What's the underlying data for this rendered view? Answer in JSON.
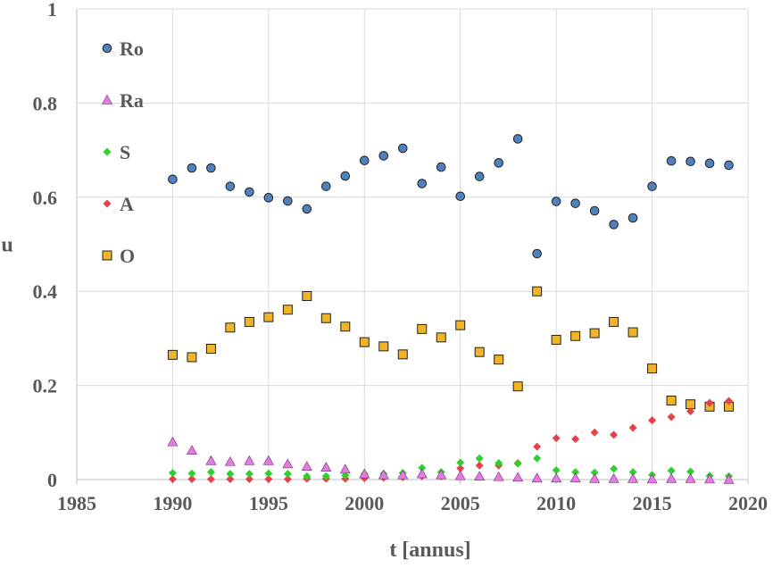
{
  "chart_data": {
    "type": "scatter",
    "title": "",
    "xlabel": "t [annus]",
    "ylabel": "u",
    "xlim": [
      1985,
      2020
    ],
    "ylim": [
      0,
      1
    ],
    "xticks": [
      1985,
      1990,
      1995,
      2000,
      2005,
      2010,
      2015,
      2020
    ],
    "yticks": [
      0,
      0.2,
      0.4,
      0.6,
      0.8,
      1
    ],
    "ytick_labels": [
      "0",
      "0.2",
      "0.4",
      "0.6",
      "0.8",
      "1"
    ],
    "grid": true,
    "legend": "top-left",
    "x": [
      1990,
      1991,
      1992,
      1993,
      1994,
      1995,
      1996,
      1997,
      1998,
      1999,
      2000,
      2001,
      2002,
      2003,
      2004,
      2005,
      2006,
      2007,
      2008,
      2009,
      2010,
      2011,
      2012,
      2013,
      2014,
      2015,
      2016,
      2017,
      2018,
      2019
    ],
    "series": [
      {
        "name": "Ro",
        "marker": "circle",
        "color": "#4f81bd",
        "values": [
          0.638,
          0.662,
          0.662,
          0.623,
          0.611,
          0.599,
          0.592,
          0.575,
          0.623,
          0.645,
          0.678,
          0.688,
          0.704,
          0.629,
          0.664,
          0.602,
          0.644,
          0.673,
          0.724,
          0.48,
          0.591,
          0.587,
          0.571,
          0.542,
          0.556,
          0.623,
          0.677,
          0.676,
          0.672,
          0.668
        ]
      },
      {
        "name": "Ra",
        "marker": "triangle",
        "color": "#e07ee0",
        "values": [
          0.08,
          0.062,
          0.04,
          0.038,
          0.04,
          0.04,
          0.033,
          0.028,
          0.026,
          0.022,
          0.012,
          0.01,
          0.01,
          0.012,
          0.01,
          0.008,
          0.007,
          0.006,
          0.005,
          0.003,
          0.003,
          0.003,
          0.002,
          0.002,
          0.002,
          0.001,
          0.002,
          0.002,
          0.001,
          0.0
        ]
      },
      {
        "name": "S",
        "marker": "diamond",
        "color": "#2fcf2f",
        "values": [
          0.014,
          0.013,
          0.016,
          0.012,
          0.012,
          0.013,
          0.012,
          0.007,
          0.007,
          0.009,
          0.012,
          0.012,
          0.014,
          0.025,
          0.016,
          0.036,
          0.045,
          0.035,
          0.034,
          0.045,
          0.02,
          0.016,
          0.015,
          0.023,
          0.016,
          0.01,
          0.019,
          0.017,
          0.008,
          0.007
        ]
      },
      {
        "name": "A",
        "marker": "diamond",
        "color": "#e8404a",
        "values": [
          0.001,
          0.001,
          0.001,
          0.001,
          0.001,
          0.001,
          0.001,
          0.002,
          0.002,
          0.002,
          0.003,
          0.004,
          0.005,
          0.007,
          0.007,
          0.024,
          0.03,
          0.03,
          0.035,
          0.07,
          0.088,
          0.086,
          0.1,
          0.095,
          0.11,
          0.126,
          0.133,
          0.145,
          0.163,
          0.167
        ]
      },
      {
        "name": "O",
        "marker": "square",
        "color": "#f0b428",
        "values": [
          0.265,
          0.26,
          0.278,
          0.323,
          0.335,
          0.345,
          0.361,
          0.39,
          0.343,
          0.325,
          0.292,
          0.283,
          0.266,
          0.32,
          0.302,
          0.328,
          0.271,
          0.255,
          0.198,
          0.4,
          0.297,
          0.305,
          0.311,
          0.335,
          0.313,
          0.236,
          0.168,
          0.16,
          0.155,
          0.155
        ]
      }
    ]
  }
}
